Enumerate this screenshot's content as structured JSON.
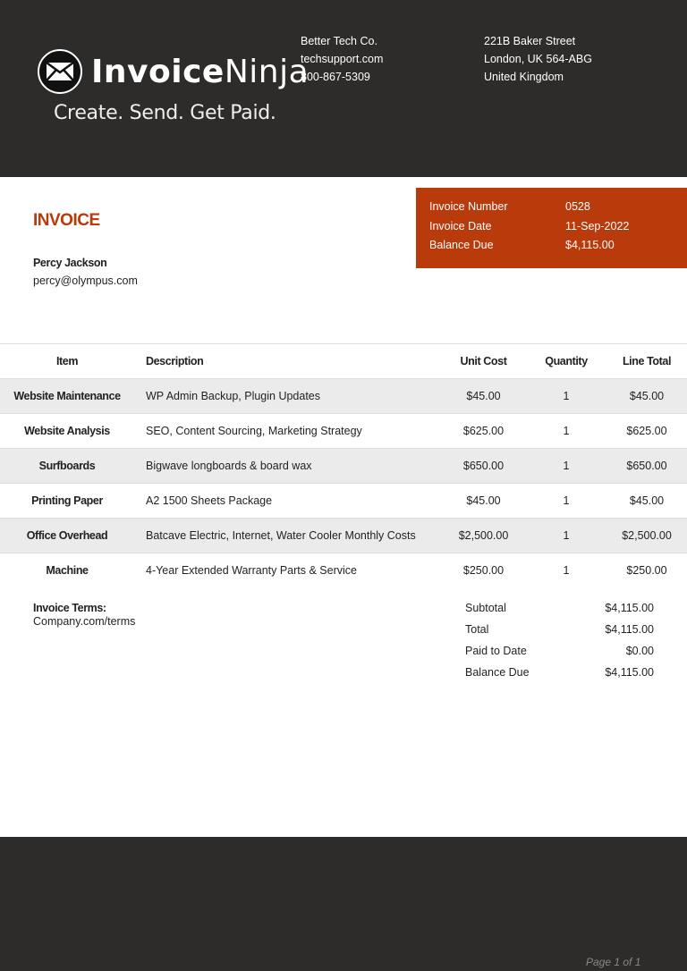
{
  "brand": {
    "logo_text_bold": "Invoice",
    "logo_text_light": "Ninja",
    "tagline": "Create. Send. Get Paid."
  },
  "company": {
    "name": "Better Tech Co.",
    "email": "techsupport.com",
    "phone": "800-867-5309"
  },
  "address": {
    "line1": "221B Baker Street",
    "line2": "London, UK 564-ABG",
    "line3": "United Kingdom"
  },
  "invoice": {
    "title": "INVOICE",
    "details": [
      {
        "label": "Invoice Number",
        "value": "0528"
      },
      {
        "label": "Invoice Date",
        "value": "11-Sep-2022"
      },
      {
        "label": "Balance Due",
        "value": "$4,115.00"
      }
    ]
  },
  "client": {
    "name": "Percy Jackson",
    "email": "percy@olympus.com"
  },
  "table": {
    "headers": [
      "Item",
      "Description",
      "Unit Cost",
      "Quantity",
      "Line Total"
    ],
    "rows": [
      [
        "Website Maintenance",
        "WP Admin Backup, Plugin Updates",
        "$45.00",
        "1",
        "$45.00"
      ],
      [
        "Website Analysis",
        "SEO, Content Sourcing, Marketing Strategy",
        "$625.00",
        "1",
        "$625.00"
      ],
      [
        "Surfboards",
        "Bigwave longboards & board wax",
        "$650.00",
        "1",
        "$650.00"
      ],
      [
        "Printing Paper",
        "A2 1500 Sheets Package",
        "$45.00",
        "1",
        "$45.00"
      ],
      [
        "Office Overhead",
        "Batcave Electric, Internet, Water Cooler Monthly Costs",
        "$2,500.00",
        "1",
        "$2,500.00"
      ],
      [
        "Machine",
        "4-Year Extended Warranty Parts & Service",
        "$250.00",
        "1",
        "$250.00"
      ]
    ]
  },
  "terms": {
    "label": "Invoice Terms:",
    "value": "Company.com/terms"
  },
  "totals": [
    {
      "label": "Subtotal",
      "value": "$4,115.00"
    },
    {
      "label": "Total",
      "value": "$4,115.00"
    },
    {
      "label": "Paid to Date",
      "value": "$0.00"
    },
    {
      "label": "Balance Due",
      "value": "$4,115.00"
    }
  ],
  "footer": {
    "page": "Page 1 of 1"
  },
  "colors": {
    "accent": "#b93a0b",
    "dark": "#2d2c2a",
    "row_alt": "#ebebeb"
  }
}
